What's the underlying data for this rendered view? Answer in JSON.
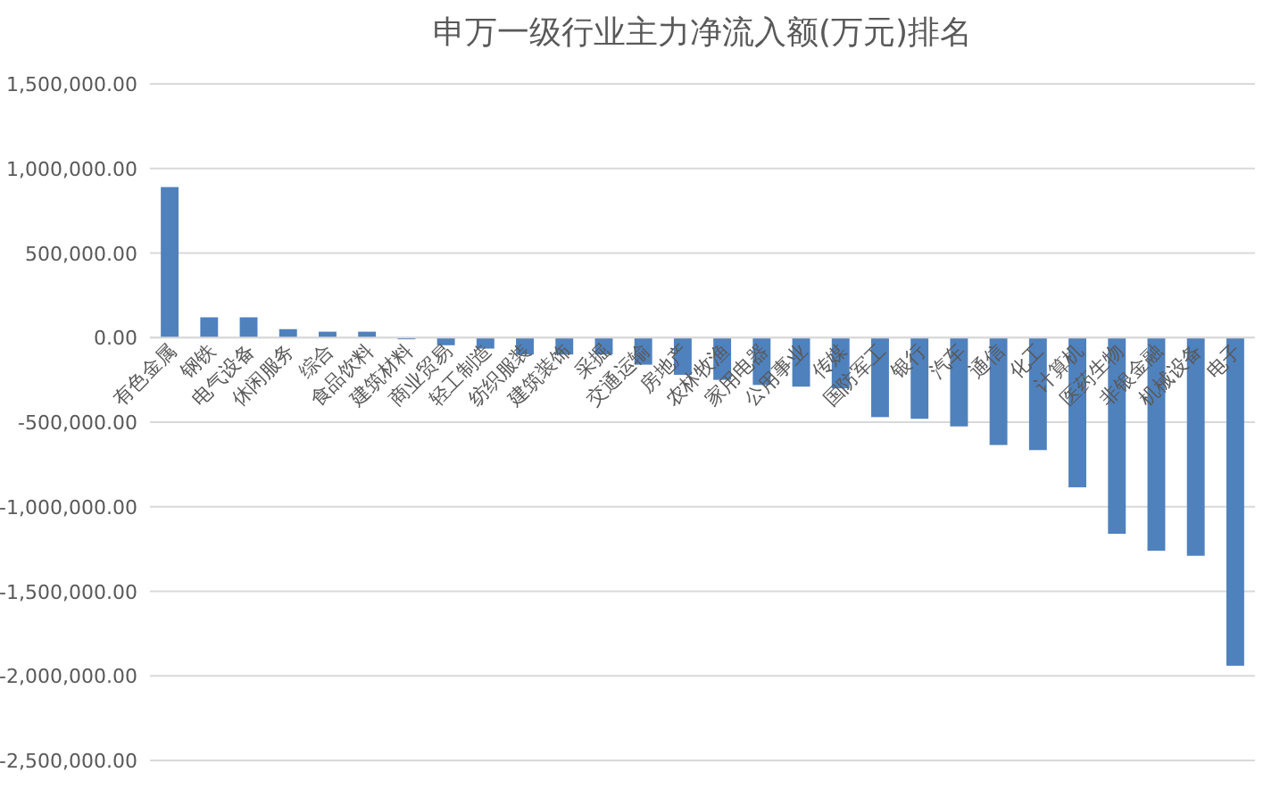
{
  "chart_data": {
    "type": "bar",
    "title": "申万一级行业主力净流入额(万元)排名",
    "categories": [
      "有色金属",
      "钢铁",
      "电气设备",
      "休闲服务",
      "综合",
      "食品饮料",
      "建筑材料",
      "商业贸易",
      "轻工制造",
      "纺织服装",
      "建筑装饰",
      "采掘",
      "交通运输",
      "房地产",
      "农林牧渔",
      "家用电器",
      "公用事业",
      "传媒",
      "国防军工",
      "银行",
      "汽车",
      "通信",
      "化工",
      "计算机",
      "医药生物",
      "非银金融",
      "机械设备",
      "电子"
    ],
    "values": [
      890000,
      120000,
      120000,
      50000,
      35000,
      35000,
      -10000,
      -45000,
      -65000,
      -100000,
      -100000,
      -100000,
      -160000,
      -220000,
      -250000,
      -280000,
      -290000,
      -300000,
      -470000,
      -480000,
      -525000,
      -635000,
      -665000,
      -885000,
      -1160000,
      -1260000,
      -1290000,
      -1940000
    ],
    "color": "#4f81bd",
    "ylim": [
      -2500000,
      1500000
    ],
    "yticks": [
      {
        "value": -2500000,
        "label": "-2,500,000.00"
      },
      {
        "value": -2000000,
        "label": "-2,000,000.00"
      },
      {
        "value": -1500000,
        "label": "-1,500,000.00"
      },
      {
        "value": -1000000,
        "label": "-1,000,000.00"
      },
      {
        "value": -500000,
        "label": "-500,000.00"
      },
      {
        "value": 0,
        "label": "0.00"
      },
      {
        "value": 500000,
        "label": "500,000.00"
      },
      {
        "value": 1000000,
        "label": "1,000,000.00"
      },
      {
        "value": 1500000,
        "label": "1,500,000.00"
      }
    ],
    "grid": "y"
  }
}
